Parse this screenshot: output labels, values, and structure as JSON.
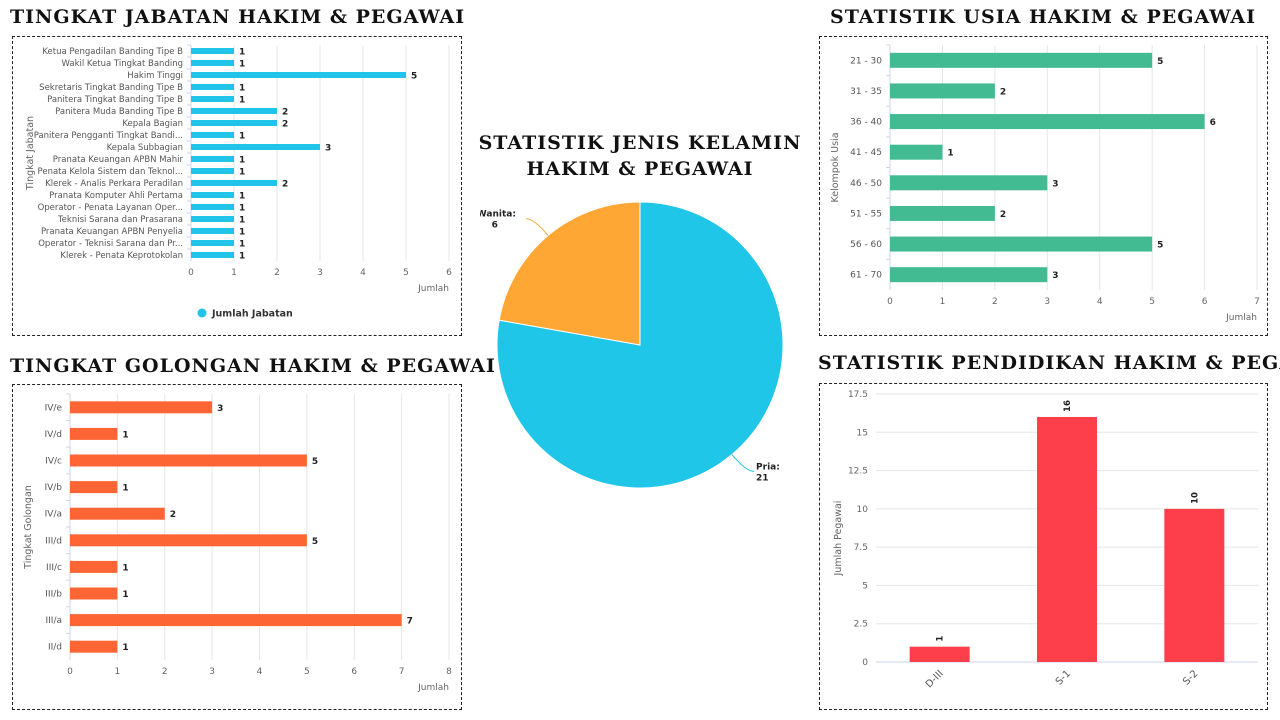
{
  "chart_data": [
    {
      "id": "jabatan",
      "type": "bar",
      "orientation": "horizontal",
      "title": "Tingkat Jabatan Hakim & Pegawai",
      "categories": [
        "Ketua Pengadilan Banding Tipe B",
        "Wakil Ketua Tingkat Banding",
        "Hakim Tinggi",
        "Sekretaris Tingkat Banding Tipe B",
        "Panitera Tingkat Banding Tipe B",
        "Panitera Muda Banding Tipe B",
        "Kepala Bagian",
        "Panitera Pengganti Tingkat Bandi...",
        "Kepala Subbagian",
        "Pranata Keuangan APBN Mahir",
        "Penata Kelola Sistem dan Teknol...",
        "Klerek - Analis Perkara Peradilan",
        "Pranata Komputer Ahli Pertama",
        "Operator - Penata Layanan Oper...",
        "Teknisi Sarana dan Prasarana",
        "Pranata Keuangan APBN Penyelia",
        "Operator - Teknisi Sarana dan Pr...",
        "Klerek - Penata Keprotokolan"
      ],
      "values": [
        1,
        1,
        5,
        1,
        1,
        2,
        2,
        1,
        3,
        1,
        1,
        2,
        1,
        1,
        1,
        1,
        1,
        1
      ],
      "xlim": [
        0,
        6
      ],
      "ticks": [
        "0",
        "1",
        "2",
        "3",
        "4",
        "5",
        "6"
      ],
      "xlabel": "Jumlah",
      "ylabel": "Tingkat Jabatan",
      "legend": "Jumlah Jabatan",
      "color": "#1fc4e8"
    },
    {
      "id": "usia",
      "type": "bar",
      "orientation": "horizontal",
      "title": "Statistik Usia Hakim & Pegawai",
      "categories": [
        "21 - 30",
        "31 - 35",
        "36 - 40",
        "41 - 45",
        "46 - 50",
        "51 - 55",
        "56 - 60",
        "61 - 70"
      ],
      "values": [
        5,
        2,
        6,
        1,
        3,
        2,
        5,
        3
      ],
      "xlim": [
        0,
        7
      ],
      "ticks": [
        "0",
        "1",
        "2",
        "3",
        "4",
        "5",
        "6",
        "7"
      ],
      "xlabel": "Jumlah",
      "ylabel": "Kelompok Usia",
      "color": "#42bb92"
    },
    {
      "id": "golongan",
      "type": "bar",
      "orientation": "horizontal",
      "title": "Tingkat Golongan Hakim & Pegawai",
      "categories": [
        "IV/e",
        "IV/d",
        "IV/c",
        "IV/b",
        "IV/a",
        "III/d",
        "III/c",
        "III/b",
        "III/a",
        "II/d"
      ],
      "values": [
        3,
        1,
        5,
        1,
        2,
        5,
        1,
        1,
        7,
        1
      ],
      "xlim": [
        0,
        8
      ],
      "ticks": [
        "0",
        "1",
        "2",
        "3",
        "4",
        "5",
        "6",
        "7",
        "8"
      ],
      "xlabel": "Jumlah",
      "ylabel": "Tingkat Golongan",
      "color": "#fd6634"
    },
    {
      "id": "kelamin",
      "type": "pie",
      "title": "Statistik Jenis Kelamin Hakim & Pegawai",
      "title_lines": [
        "Statistik Jenis Kelamin",
        "Hakim & Pegawai"
      ],
      "slices": [
        {
          "label": "Pria",
          "value": 21,
          "color": "#20c6e8"
        },
        {
          "label": "Wanita",
          "value": 6,
          "color": "#fea735"
        }
      ]
    },
    {
      "id": "pendidikan",
      "type": "bar",
      "orientation": "vertical",
      "title": "Statistik Pendidikan Hakim & Pegawai",
      "categories": [
        "D-III",
        "S-1",
        "S-2"
      ],
      "values": [
        1,
        16,
        10
      ],
      "ylim": [
        0,
        17.5
      ],
      "ticks": [
        "0",
        "2.5",
        "5",
        "7.5",
        "10",
        "12.5",
        "15",
        "17.5"
      ],
      "ylabel": "Jumlah Pegawai",
      "color": "#fd3f4c"
    }
  ]
}
